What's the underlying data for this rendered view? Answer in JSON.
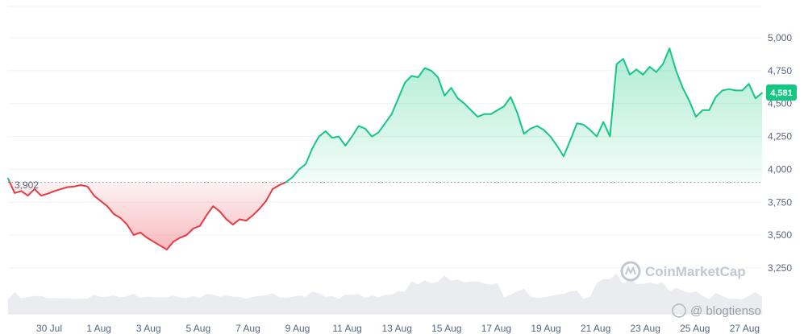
{
  "chart_data": {
    "type": "line",
    "x_ticks": [
      "30 Jul",
      "1 Aug",
      "3 Aug",
      "5 Aug",
      "7 Aug",
      "9 Aug",
      "11 Aug",
      "13 Aug",
      "15 Aug",
      "17 Aug",
      "19 Aug",
      "21 Aug",
      "23 Aug",
      "25 Aug",
      "27 Aug"
    ],
    "y_ticks": [
      "5,000",
      "4,750",
      "4,500",
      "4,250",
      "4,000",
      "3,750",
      "3,500",
      "3,250"
    ],
    "ylim": [
      3100,
      5250
    ],
    "baseline_value": 3902,
    "baseline_label": "3,902",
    "current_price_label": "4,581",
    "series": [
      {
        "values": [
          3930,
          3820,
          3835,
          3800,
          3850,
          3800,
          3815,
          3835,
          3850,
          3865,
          3870,
          3880,
          3870,
          3800,
          3760,
          3720,
          3660,
          3630,
          3580,
          3500,
          3520,
          3480,
          3450,
          3420,
          3390,
          3450,
          3480,
          3500,
          3550,
          3570,
          3650,
          3720,
          3680,
          3620,
          3580,
          3620,
          3610,
          3650,
          3700,
          3760,
          3850,
          3880,
          3902,
          3940,
          4000,
          4040,
          4160,
          4250,
          4290,
          4240,
          4250,
          4180,
          4250,
          4330,
          4310,
          4250,
          4280,
          4350,
          4420,
          4540,
          4660,
          4710,
          4700,
          4770,
          4750,
          4700,
          4560,
          4620,
          4540,
          4500,
          4450,
          4400,
          4420,
          4420,
          4450,
          4480,
          4550,
          4430,
          4270,
          4310,
          4330,
          4300,
          4250,
          4180,
          4100,
          4220,
          4350,
          4340,
          4300,
          4250,
          4360,
          4250,
          4800,
          4840,
          4720,
          4760,
          4720,
          4780,
          4740,
          4800,
          4920,
          4750,
          4620,
          4520,
          4400,
          4450,
          4450,
          4550,
          4600,
          4610,
          4600,
          4600,
          4650,
          4540,
          4581
        ]
      }
    ],
    "colors": {
      "up_line": "#16c784",
      "down_line": "#ea3943",
      "up_fill": "#16c784",
      "down_fill": "#ea3943",
      "badge": "#16c784",
      "volume": "#d9dde3",
      "baseline": "#8a939f"
    },
    "grid": true,
    "y_axis_position": "right"
  },
  "watermark": {
    "brand": "CoinMarketCap",
    "overlay": "@ blogtienso"
  }
}
